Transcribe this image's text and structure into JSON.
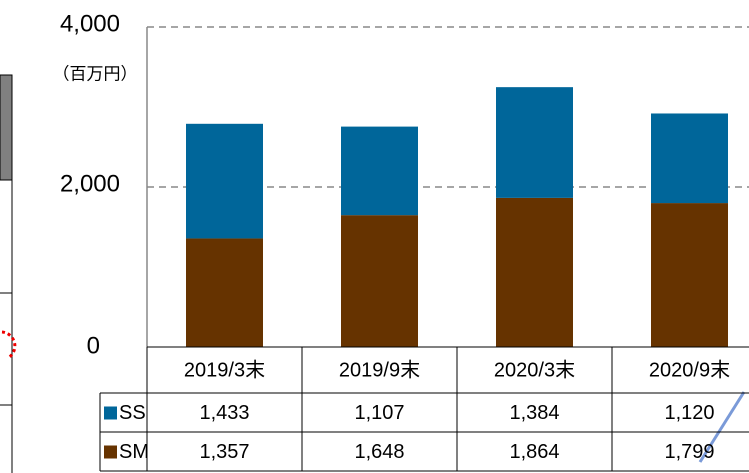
{
  "chart_data": {
    "type": "bar",
    "stacked": true,
    "unit_label": "（百万円）",
    "categories": [
      "2019/3末",
      "2019/9末",
      "2020/3末",
      "2020/9末"
    ],
    "series": [
      {
        "name": "SS",
        "color": "#00669a",
        "values": [
          1433,
          1107,
          1384,
          1120
        ],
        "value_labels": [
          "1,433",
          "1,107",
          "1,384",
          "1,120"
        ]
      },
      {
        "name": "SM",
        "color": "#663300",
        "values": [
          1357,
          1648,
          1864,
          1799
        ],
        "value_labels": [
          "1,357",
          "1,648",
          "1,864",
          "1,799"
        ]
      }
    ],
    "ylim": [
      0,
      4000
    ],
    "yticks": [
      0,
      {
        "value": 2000,
        "label": "2,000"
      },
      {
        "value": 4000,
        "label": "4,000"
      }
    ],
    "grid": true
  }
}
